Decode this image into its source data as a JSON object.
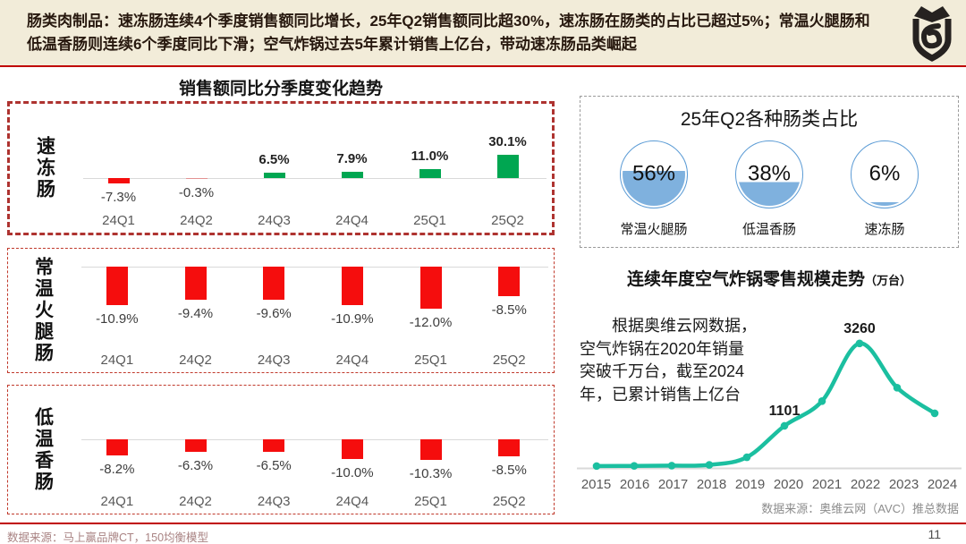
{
  "header": {
    "text": "肠类肉制品：速冻肠连续4个季度销售额同比增长，25年Q2销售额同比超30%，速冻肠在肠类的占比已超过5%；常温火腿肠和低温香肠则连续6个季度同比下滑；空气炸锅过去5年累计销售上亿台，带动速冻肠品类崛起"
  },
  "left_section": {
    "title": "销售额同比分季度变化趋势"
  },
  "share_section": {
    "title": "25年Q2各种肠类占比"
  },
  "airfryer_section": {
    "title": "连续年度空气炸锅零售规模走势",
    "unit": "（万台）",
    "annotation": "　　根据奥维云网数据，\n空气炸锅在2020年销量\n突破千万台，截至2024\n年，已累计销售上亿台",
    "source": "数据来源：奥维云网（AVC）推总数据"
  },
  "footer": {
    "source": "数据来源：马上赢品牌CT，150均衡模型",
    "page": "11"
  },
  "colors": {
    "positive_green": "#00a651",
    "negative_red": "#f50d0d",
    "line_teal": "#1bbfa0",
    "circle_ring": "#5b9bd5",
    "circle_fill": "rgba(91,155,213,0.78)",
    "accent_red": "#c00000",
    "baseline_gray": "#d9d9d9"
  },
  "chart_data": [
    {
      "id": "frozen-sausage-yoy",
      "type": "bar",
      "title": "销售额同比分季度变化趋势 — 速冻肠",
      "row_label": "速冻肠",
      "categories": [
        "24Q1",
        "24Q2",
        "24Q3",
        "24Q4",
        "25Q1",
        "25Q2"
      ],
      "values": [
        -7.3,
        -0.3,
        6.5,
        7.9,
        11.0,
        30.1
      ],
      "unit": "%",
      "grid": false,
      "ylim": [
        -10,
        35
      ]
    },
    {
      "id": "ham-sausage-yoy",
      "type": "bar",
      "title": "销售额同比分季度变化趋势 — 常温火腿肠",
      "row_label": "常温火腿肠",
      "categories": [
        "24Q1",
        "24Q2",
        "24Q3",
        "24Q4",
        "25Q1",
        "25Q2"
      ],
      "values": [
        -10.9,
        -9.4,
        -9.6,
        -10.9,
        -12.0,
        -8.5
      ],
      "unit": "%",
      "grid": false,
      "ylim": [
        -14,
        0
      ]
    },
    {
      "id": "lowtemp-sausage-yoy",
      "type": "bar",
      "title": "销售额同比分季度变化趋势 — 低温香肠",
      "row_label": "低温香肠",
      "categories": [
        "24Q1",
        "24Q2",
        "24Q3",
        "24Q4",
        "25Q1",
        "25Q2"
      ],
      "values": [
        -8.2,
        -6.3,
        -6.5,
        -10.0,
        -10.3,
        -8.5
      ],
      "unit": "%",
      "grid": false,
      "ylim": [
        -12,
        0
      ]
    },
    {
      "id": "sausage-share-q2-25",
      "type": "pie",
      "title": "25年Q2各种肠类占比",
      "labels": [
        "常温火腿肠",
        "低温香肠",
        "速冻肠"
      ],
      "values": [
        56,
        38,
        6
      ],
      "unit": "%"
    },
    {
      "id": "airfryer-retail-scale",
      "type": "line",
      "title": "连续年度空气炸锅零售规模走势（万台）",
      "x": [
        2015,
        2016,
        2017,
        2018,
        2019,
        2020,
        2021,
        2022,
        2023,
        2024
      ],
      "values": [
        50,
        55,
        60,
        80,
        280,
        1101,
        1750,
        3260,
        2100,
        1430
      ],
      "labeled_points": [
        {
          "x": 2020,
          "label": "1101"
        },
        {
          "x": 2022,
          "label": "3260"
        }
      ],
      "ylabel": "万台",
      "ylim": [
        0,
        3500
      ],
      "grid": false,
      "legend": "none"
    }
  ]
}
